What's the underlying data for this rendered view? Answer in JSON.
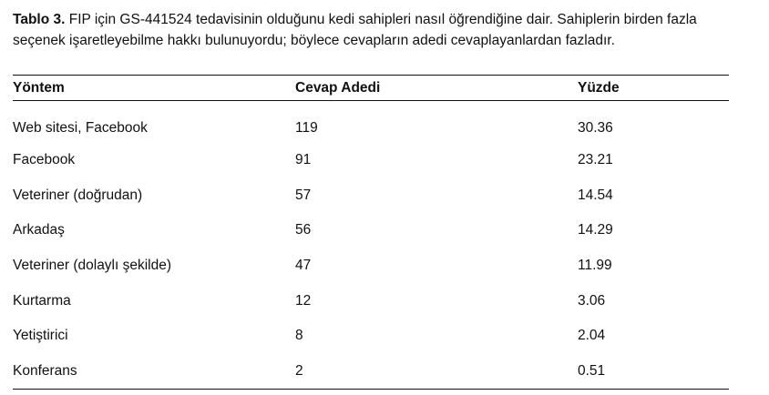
{
  "caption": {
    "label": "Tablo 3.",
    "text": " FIP için GS-441524 tedavisinin olduğunu kedi sahipleri nasıl öğrendiğine dair. Sahiplerin birden fazla seçenek işaretleyebilme hakkı bulunuyordu; böylece cevapların adedi cevaplayanlardan fazladır."
  },
  "table": {
    "headers": [
      "Yöntem",
      "Cevap Adedi",
      "Yüzde"
    ],
    "rows": [
      [
        "Web sitesi, Facebook",
        "119",
        "30.36"
      ],
      [
        "Facebook",
        "91",
        "23.21"
      ],
      [
        "Veteriner (doğrudan)",
        "57",
        "14.54"
      ],
      [
        "Arkadaş",
        "56",
        "14.29"
      ],
      [
        "Veteriner (dolaylı şekilde)",
        "47",
        "11.99"
      ],
      [
        "Kurtarma",
        "12",
        "3.06"
      ],
      [
        "Yetiştirici",
        "8",
        "2.04"
      ],
      [
        "Konferans",
        "2",
        "0.51"
      ]
    ]
  }
}
